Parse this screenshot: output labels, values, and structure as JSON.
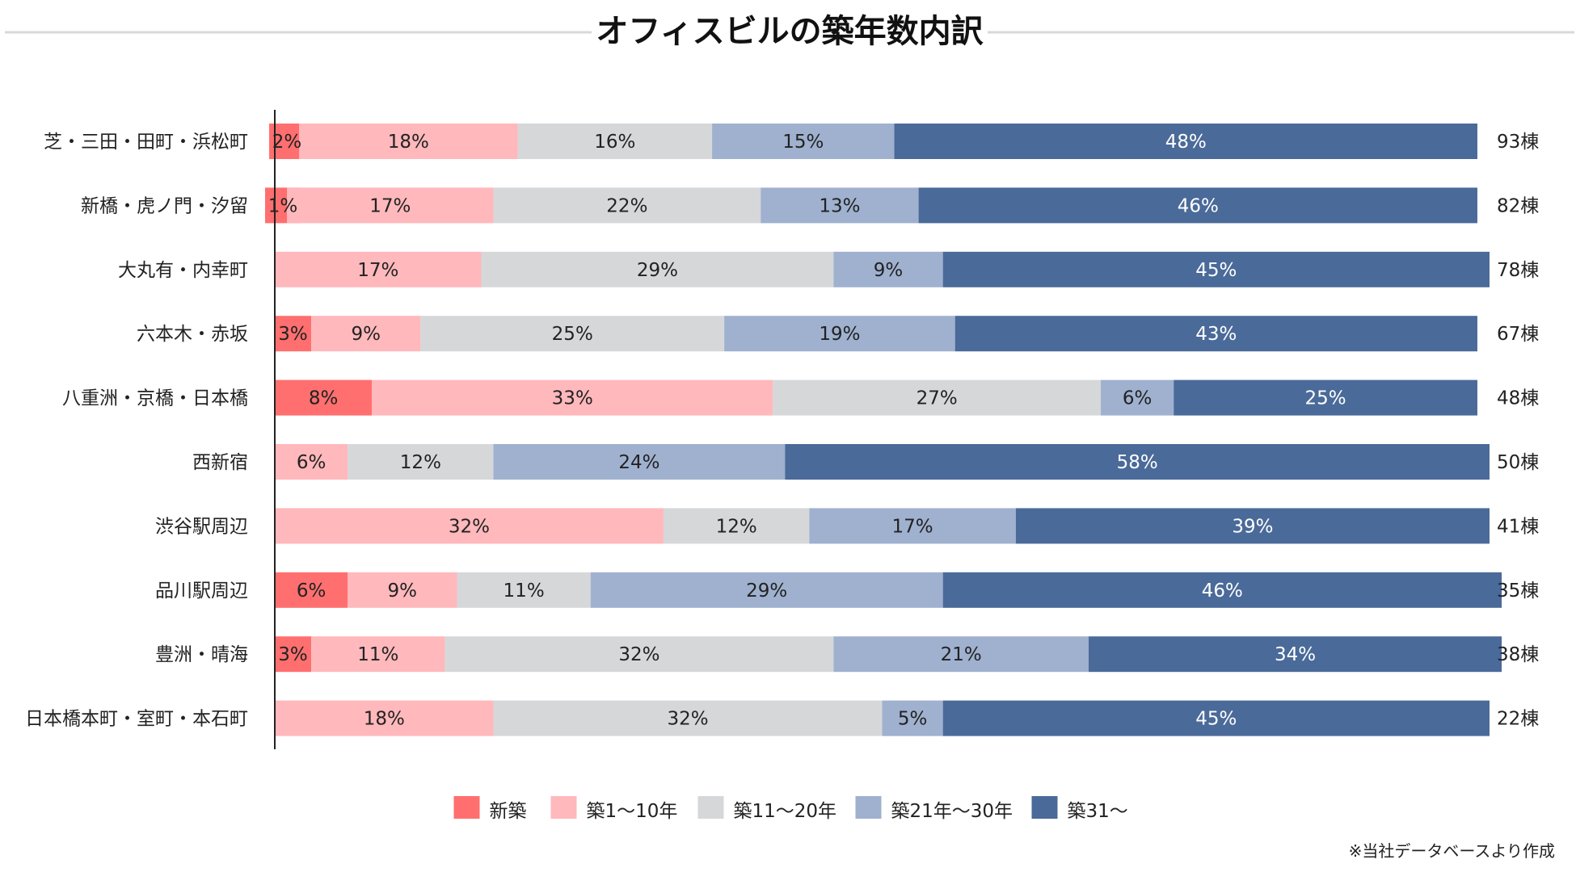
{
  "chart_data": {
    "type": "bar",
    "orientation": "horizontal",
    "stacked": true,
    "normalized_percent": true,
    "title": "オフィスビルの築年数内訳",
    "xlabel": "",
    "ylabel": "",
    "xlim": [
      0,
      100
    ],
    "grid": false,
    "legend_position": "bottom",
    "categories": [
      "芝・三田・田町・浜松町",
      "新橋・虎ノ門・汐留",
      "大丸有・内幸町",
      "六本木・赤坂",
      "八重洲・京橋・日本橋",
      "西新宿",
      "渋谷駅周辺",
      "品川駅周辺",
      "豊洲・晴海",
      "日本橋本町・室町・本石町"
    ],
    "totals": [
      "93棟",
      "82棟",
      "78棟",
      "67棟",
      "48棟",
      "50棟",
      "41棟",
      "35棟",
      "38棟",
      "22棟"
    ],
    "series": [
      {
        "name": "新築",
        "color": "#ff6f6f",
        "label_color": "#222222",
        "values": [
          2,
          1,
          0,
          3,
          8,
          0,
          0,
          6,
          3,
          0
        ]
      },
      {
        "name": "築1〜10年",
        "color": "#ffb8bc",
        "label_color": "#222222",
        "values": [
          18,
          17,
          17,
          9,
          33,
          6,
          32,
          9,
          11,
          18
        ]
      },
      {
        "name": "築11〜20年",
        "color": "#d6d7d9",
        "label_color": "#222222",
        "values": [
          16,
          22,
          29,
          25,
          27,
          12,
          12,
          11,
          32,
          32
        ]
      },
      {
        "name": "築21年〜30年",
        "color": "#9fb1cf",
        "label_color": "#222222",
        "values": [
          15,
          13,
          9,
          19,
          6,
          24,
          17,
          29,
          21,
          5
        ]
      },
      {
        "name": "築31〜",
        "color": "#4a6a99",
        "label_color": "#ffffff",
        "values": [
          48,
          46,
          45,
          43,
          25,
          58,
          39,
          46,
          34,
          45
        ]
      }
    ],
    "annotation": "※当社データベースより作成"
  }
}
